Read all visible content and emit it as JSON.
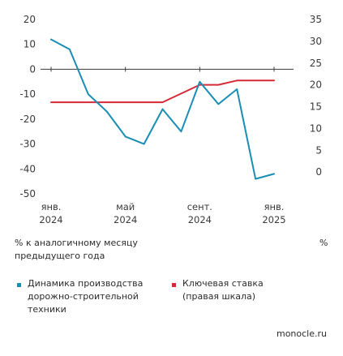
{
  "chart_data": {
    "type": "line",
    "x_ticks": [
      {
        "x": 0,
        "line1": "янв.",
        "line2": "2024"
      },
      {
        "x": 4,
        "line1": "май",
        "line2": "2024"
      },
      {
        "x": 8,
        "line1": "сент.",
        "line2": "2024"
      },
      {
        "x": 12,
        "line1": "янв.",
        "line2": "2025"
      }
    ],
    "y_left": {
      "ticks": [
        20,
        10,
        0,
        -10,
        -20,
        -30,
        -40,
        -50
      ],
      "ylim": [
        -50,
        20
      ],
      "unit_label": "% к аналогичному месяцу предыдущего года"
    },
    "y_right": {
      "ticks": [
        35,
        30,
        25,
        20,
        15,
        10,
        5,
        0
      ],
      "ylim": [
        -5,
        35
      ],
      "unit_label": "%"
    },
    "grid": false,
    "series": [
      {
        "name": "Динамика производства дорожно-строительной техники",
        "axis": "left",
        "color": "#1a8db4",
        "x": [
          0,
          1,
          2,
          3,
          4,
          5,
          6,
          7,
          8,
          9,
          10,
          11,
          12
        ],
        "values": [
          12,
          8,
          -10,
          -17,
          -27,
          -30,
          -16,
          -25,
          -5,
          -14,
          -8,
          -44,
          -42
        ]
      },
      {
        "name": "Ключевая ставка (правая шкала)",
        "axis": "right",
        "color": "#d42a38",
        "x": [
          0,
          1,
          2,
          3,
          4,
          5,
          6,
          7,
          8,
          9,
          10,
          11,
          12
        ],
        "values": [
          16,
          16,
          16,
          16,
          16,
          16,
          16,
          18,
          20,
          20,
          21,
          21,
          21
        ]
      }
    ]
  },
  "legend": {
    "items": [
      {
        "label": "Динамика производства дорожно-строительной техники",
        "color": "#1a8db4"
      },
      {
        "label": "Ключевая ставка (правая шкала)",
        "color": "#d42a38"
      }
    ]
  },
  "credit": "monocle.ru"
}
